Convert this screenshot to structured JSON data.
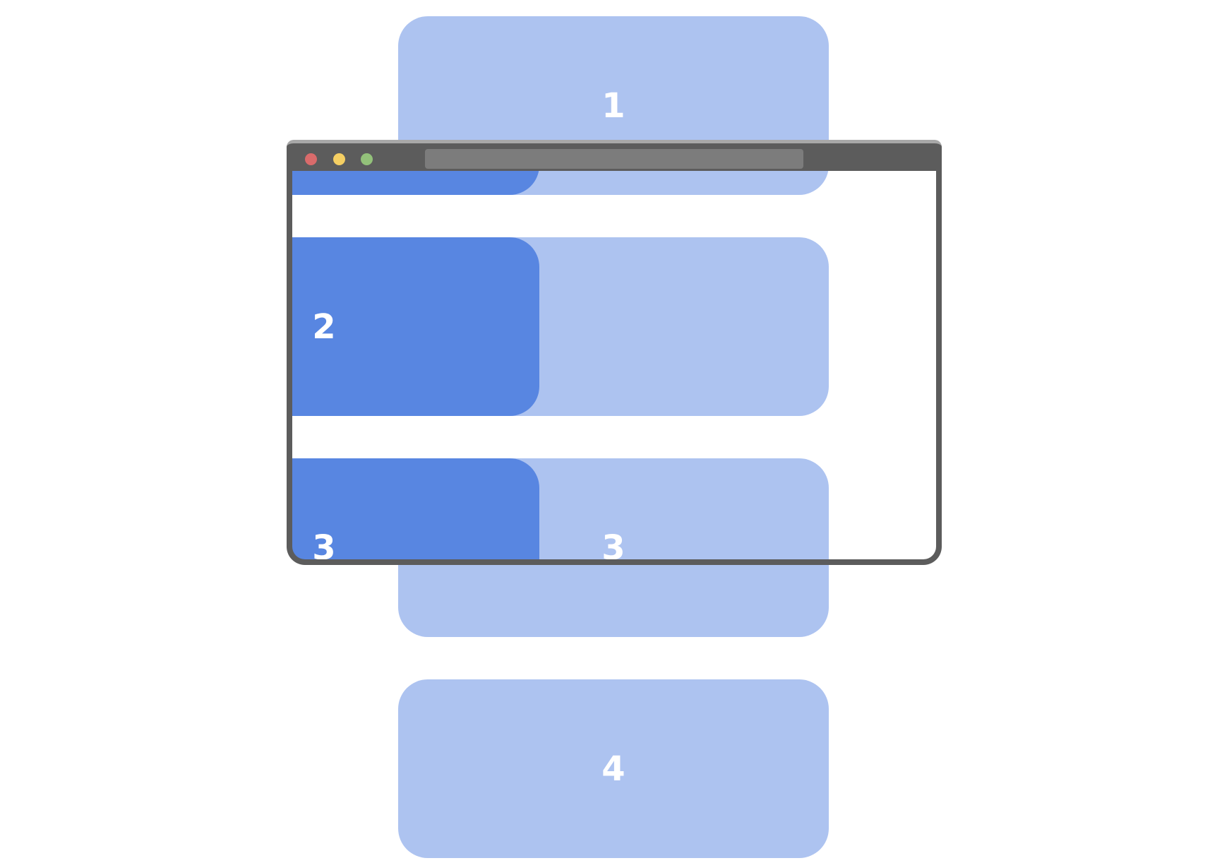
{
  "cards": [
    {
      "label": "1",
      "state": "offscreen"
    },
    {
      "label": "2",
      "state": "visible"
    },
    {
      "label": "3",
      "state": "partially-visible"
    },
    {
      "label": "4",
      "state": "offscreen"
    }
  ],
  "colors": {
    "card_visible": "#5886e1",
    "card_offscreen": "#adc3f0",
    "frame": "#5c5c5c",
    "traffic_red": "#d96b6b",
    "traffic_yellow": "#f5cf63",
    "traffic_green": "#93c17a",
    "address_bar": "#7c7c7c"
  },
  "browser": {
    "icons": [
      "close-dot-icon",
      "minimize-dot-icon",
      "maximize-dot-icon"
    ]
  }
}
